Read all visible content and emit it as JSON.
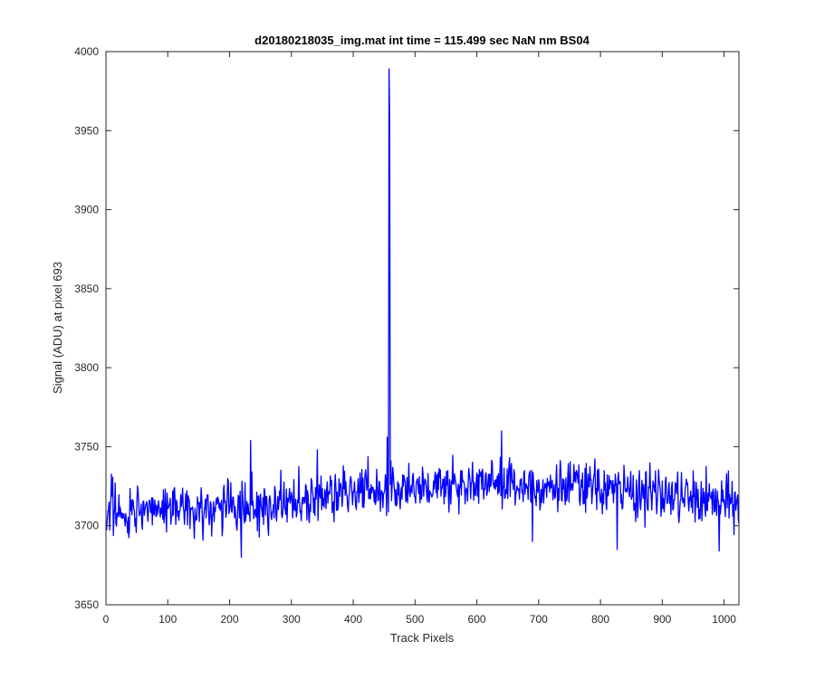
{
  "chart_data": {
    "type": "line",
    "title": "d20180218035_img.mat int time = 115.499 sec  NaN nm BS04",
    "xlabel": "Track Pixels",
    "ylabel": "Signal (ADU) at pixel 693",
    "xlim": [
      0,
      1024
    ],
    "ylim": [
      3650,
      4000
    ],
    "xticks": [
      0,
      100,
      200,
      300,
      400,
      500,
      600,
      700,
      800,
      900,
      1000
    ],
    "yticks": [
      3650,
      3700,
      3750,
      3800,
      3850,
      3900,
      3950,
      4000
    ],
    "grid": false,
    "series_color": "#0000ff",
    "series": [
      {
        "x_start": 1,
        "x_step": 1,
        "noise_baseline": [
          [
            1,
            3709
          ],
          [
            250,
            3712
          ],
          [
            400,
            3722
          ],
          [
            650,
            3727
          ],
          [
            850,
            3722
          ],
          [
            1024,
            3713
          ]
        ],
        "noise_std": 8,
        "spikes": [
          [
            458,
            3989
          ],
          [
            459,
            3955
          ]
        ],
        "peaks": [
          [
            219,
            3680
          ],
          [
            234,
            3754
          ],
          [
            342,
            3748
          ],
          [
            455,
            3756
          ],
          [
            640,
            3760
          ],
          [
            690,
            3690
          ],
          [
            827,
            3685
          ],
          [
            992,
            3684
          ],
          [
            1013,
            3728
          ]
        ]
      }
    ]
  }
}
